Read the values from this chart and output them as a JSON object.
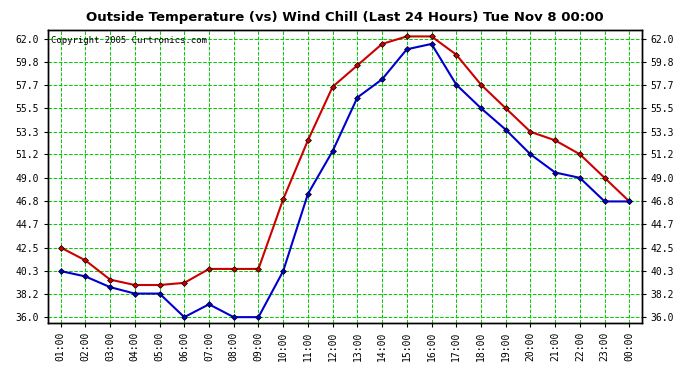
{
  "title": "Outside Temperature (vs) Wind Chill (Last 24 Hours) Tue Nov 8 00:00",
  "copyright": "Copyright 2005 Curtronics.com",
  "background_color": "#ffffff",
  "grid_color": "#00cc00",
  "hours": [
    "01:00",
    "02:00",
    "03:00",
    "04:00",
    "05:00",
    "06:00",
    "07:00",
    "08:00",
    "09:00",
    "10:00",
    "11:00",
    "12:00",
    "13:00",
    "14:00",
    "15:00",
    "16:00",
    "17:00",
    "18:00",
    "19:00",
    "20:00",
    "21:00",
    "22:00",
    "23:00",
    "00:00"
  ],
  "outside_temp": [
    42.5,
    41.3,
    39.5,
    39.0,
    39.0,
    39.2,
    40.5,
    40.5,
    40.5,
    47.0,
    52.5,
    57.5,
    59.5,
    61.5,
    62.2,
    62.2,
    60.5,
    57.7,
    55.5,
    53.3,
    52.5,
    51.2,
    49.0,
    46.8
  ],
  "wind_chill": [
    40.3,
    39.8,
    38.8,
    38.2,
    38.2,
    36.0,
    37.2,
    36.0,
    36.0,
    40.3,
    47.5,
    51.5,
    56.5,
    58.2,
    61.0,
    61.5,
    57.7,
    55.5,
    53.5,
    51.2,
    49.5,
    49.0,
    46.8,
    46.8
  ],
  "temp_color": "#cc0000",
  "windchill_color": "#0000cc",
  "ylim": [
    35.5,
    62.8
  ],
  "yticks": [
    36.0,
    38.2,
    40.3,
    42.5,
    44.7,
    46.8,
    49.0,
    51.2,
    53.3,
    55.5,
    57.7,
    59.8,
    62.0
  ],
  "marker": "D",
  "marker_size": 3,
  "linewidth": 1.5
}
